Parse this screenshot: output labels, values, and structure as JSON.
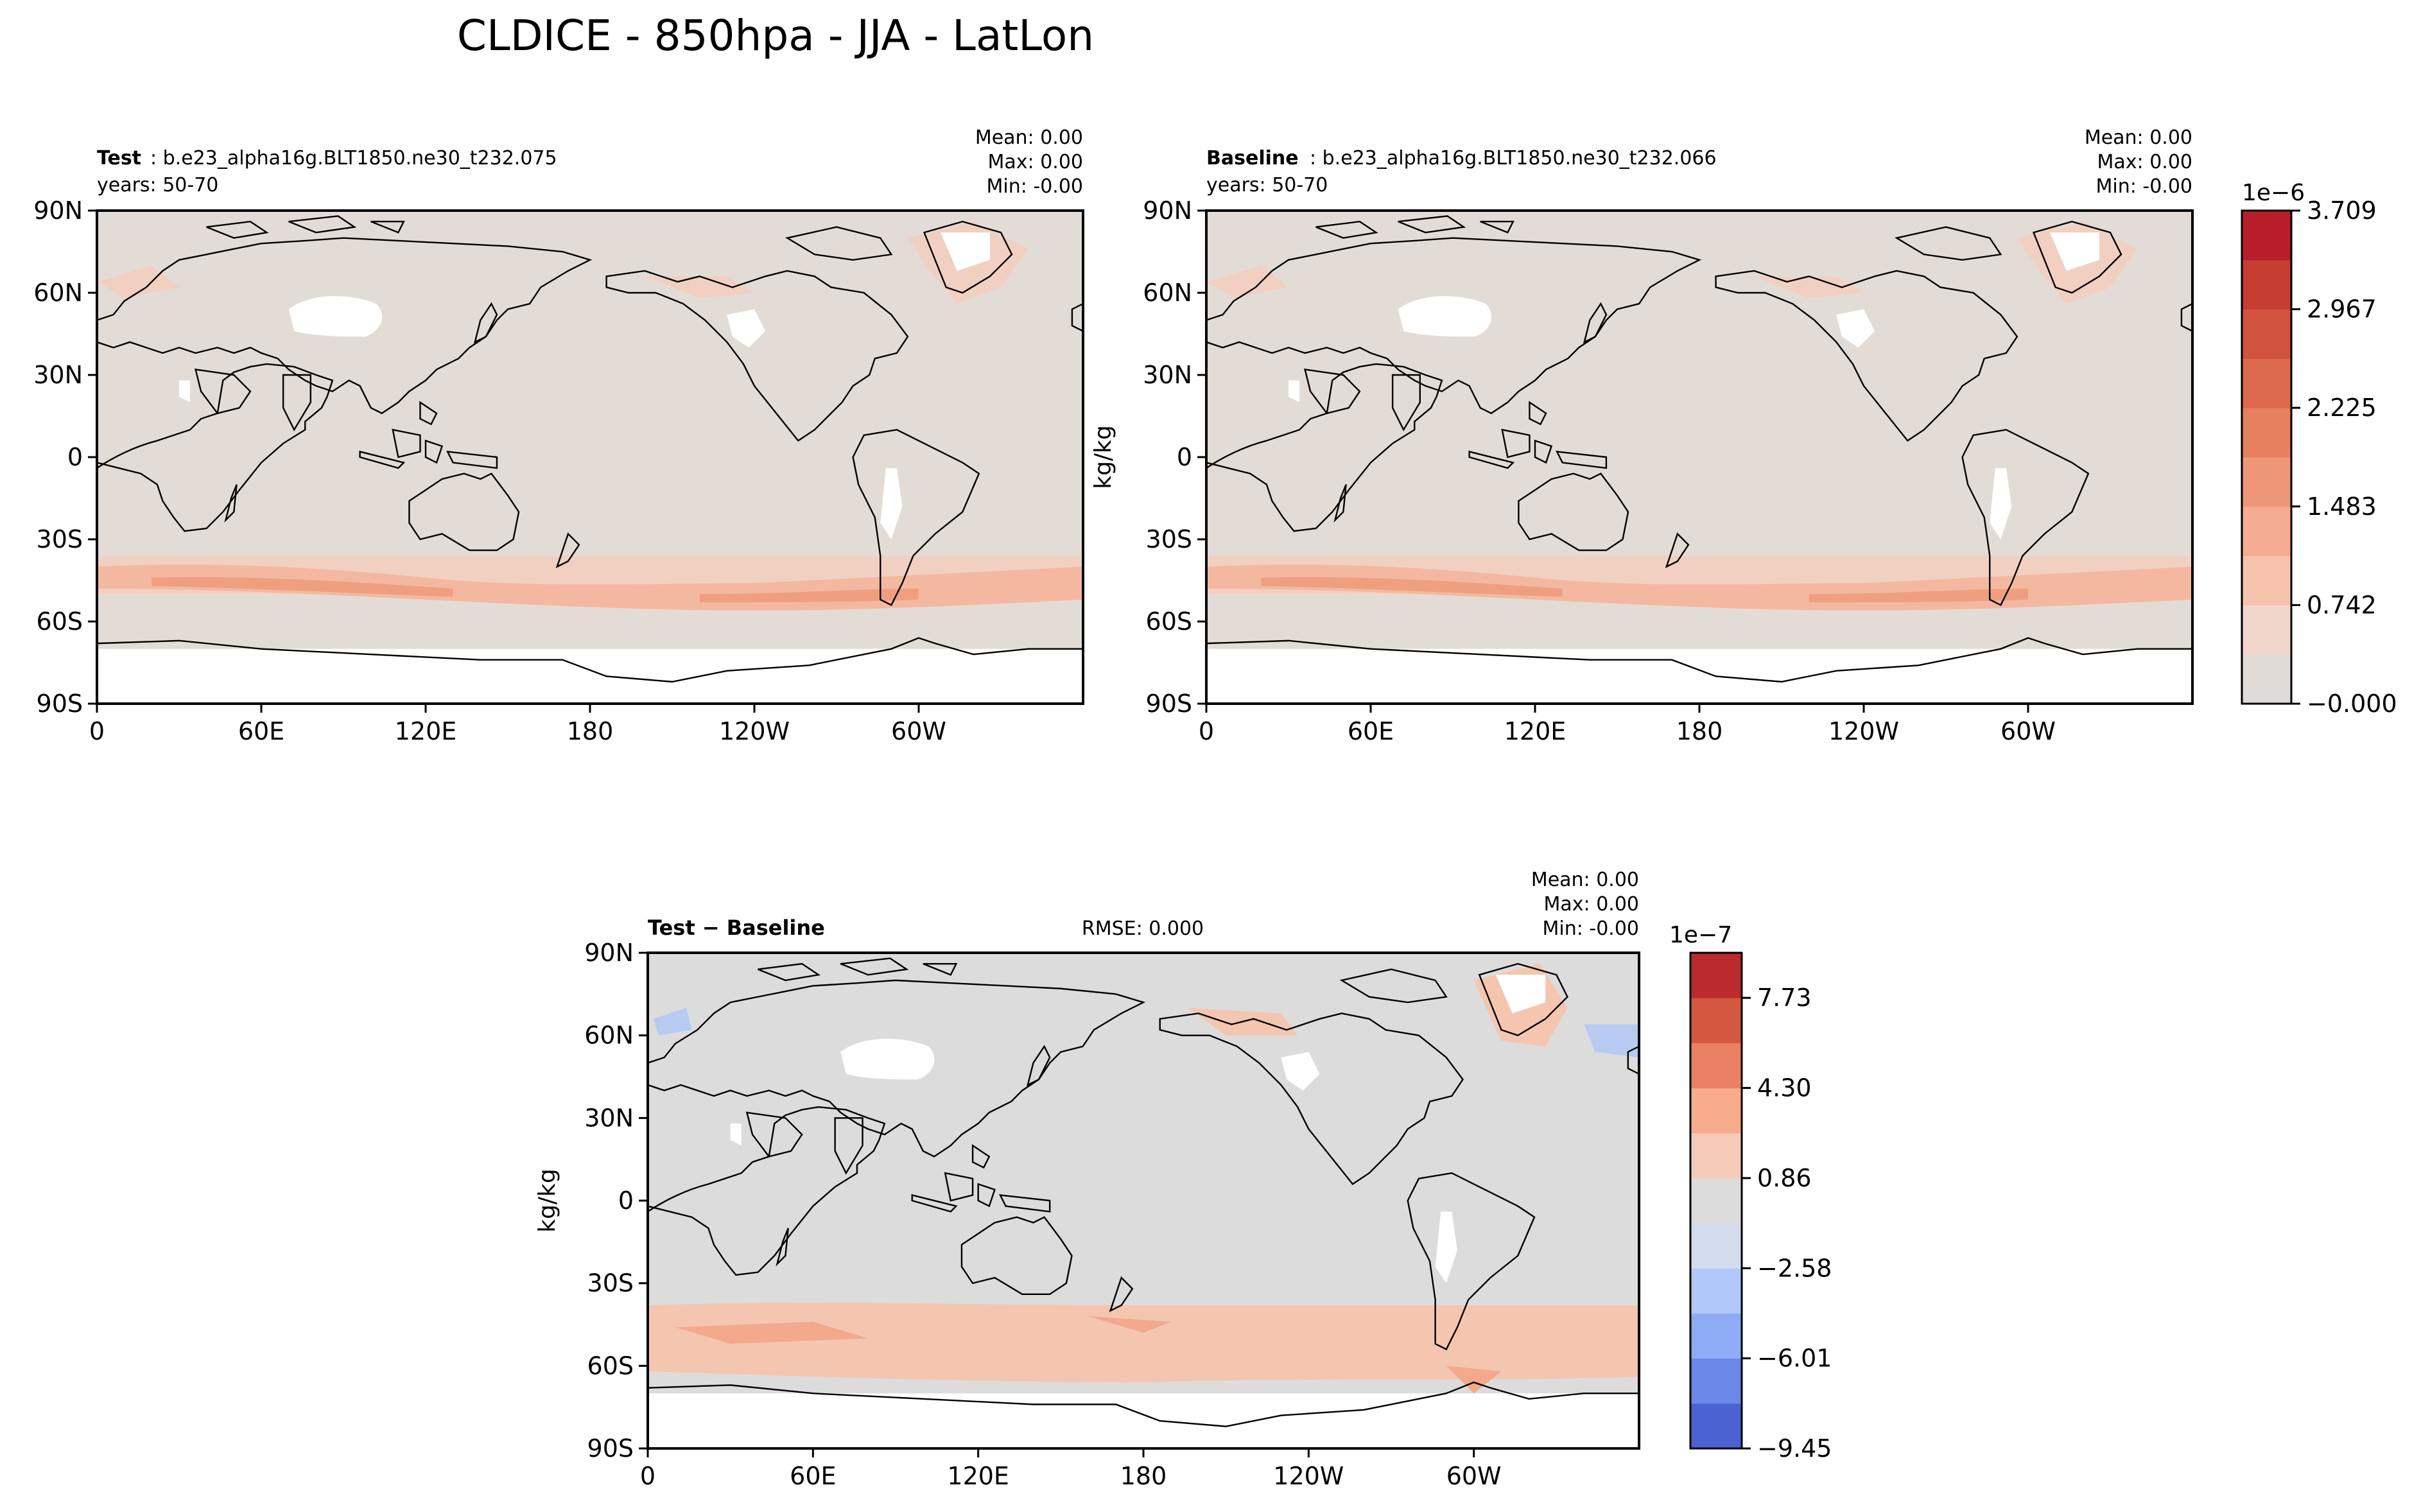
{
  "figure": {
    "title": "CLDICE - 850hpa - JJA - LatLon"
  },
  "chart_data": [
    {
      "type": "heatmap",
      "panel": "test",
      "label_bold": "Test",
      "label_rest": ": b.e23_alpha16g.BLT1850.ne30_t232.075",
      "years": "years: 50-70",
      "stats": {
        "mean": "Mean:  0.00",
        "max": "Max:  0.00",
        "min": "Min: -0.00"
      },
      "xticks": [
        "0",
        "60E",
        "120E",
        "180",
        "120W",
        "60W"
      ],
      "yticks": [
        "90N",
        "60N",
        "30N",
        "0",
        "30S",
        "60S",
        "90S"
      ],
      "xlim": [
        0,
        360
      ],
      "ylim": [
        -90,
        90
      ],
      "ylabel": ""
    },
    {
      "type": "heatmap",
      "panel": "baseline",
      "label_bold": "Baseline",
      "label_rest": ": b.e23_alpha16g.BLT1850.ne30_t232.066",
      "years": "years: 50-70",
      "stats": {
        "mean": "Mean:  0.00",
        "max": "Max:  0.00",
        "min": "Min: -0.00"
      },
      "xticks": [
        "0",
        "60E",
        "120E",
        "180",
        "120W",
        "60W"
      ],
      "yticks": [
        "90N",
        "60N",
        "30N",
        "0",
        "30S",
        "60S",
        "90S"
      ],
      "xlim": [
        0,
        360
      ],
      "ylim": [
        -90,
        90
      ],
      "ylabel": "kg/kg"
    },
    {
      "type": "heatmap",
      "panel": "diff",
      "label_bold": "Test − Baseline",
      "rmse": "RMSE: 0.000",
      "stats": {
        "mean": "Mean:  0.00",
        "max": "Max:  0.00",
        "min": "Min: -0.00"
      },
      "xticks": [
        "0",
        "60E",
        "120E",
        "180",
        "120W",
        "60W"
      ],
      "yticks": [
        "90N",
        "60N",
        "30N",
        "0",
        "30S",
        "60S",
        "90S"
      ],
      "xlim": [
        0,
        360
      ],
      "ylim": [
        -90,
        90
      ],
      "ylabel": "kg/kg"
    }
  ],
  "colorbars": {
    "main": {
      "exponent": "1e−6",
      "ticks": [
        "3.709",
        "2.967",
        "2.225",
        "1.483",
        "0.742",
        "−0.000"
      ],
      "colors": [
        "#e1dbd7",
        "#f1d6cb",
        "#f7c3ad",
        "#f4ad92",
        "#ee9778",
        "#e6805f",
        "#dd6a4f",
        "#d2533f",
        "#c63d32",
        "#b81e2a"
      ]
    },
    "diff": {
      "exponent": "1e−7",
      "ticks": [
        "7.73",
        "4.30",
        "0.86",
        "−2.58",
        "−6.01",
        "−9.45"
      ],
      "colors": [
        "#4a62d2",
        "#6a88e8",
        "#8eacf6",
        "#b1c8fb",
        "#d3dced",
        "#dcdcdc",
        "#f4cbb6",
        "#f7ac8e",
        "#ea7f63",
        "#d4573f",
        "#bb2b2d"
      ]
    }
  },
  "map_colors": {
    "background_main": "#e3dcd6",
    "band_light": "#f1d0c2",
    "band_mid": "#f4b8a0",
    "band_dark": "#ef9f80",
    "background_diff": "#dcdcdc",
    "diff_band": "#f4c6b0",
    "diff_band_dark": "#f2a98c",
    "diff_blue": "#b7cbf2",
    "missing": "#ffffff",
    "coast": "#000000"
  }
}
